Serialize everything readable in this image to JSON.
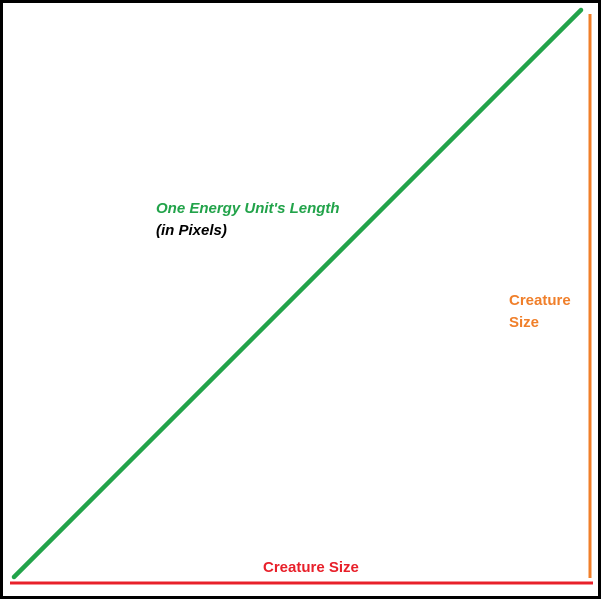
{
  "diagram": {
    "colors": {
      "border": "#000000",
      "diagonal": "#22a34a",
      "vertical": "#f07f2a",
      "horizontal": "#e8202a",
      "label_dark": "#000000"
    },
    "diagonal_label": {
      "line1": "One Energy Unit's Length",
      "line2": "(in Pixels)"
    },
    "vertical_label": {
      "line1": "Creature",
      "line2": "Size"
    },
    "horizontal_label": "Creature Size"
  }
}
